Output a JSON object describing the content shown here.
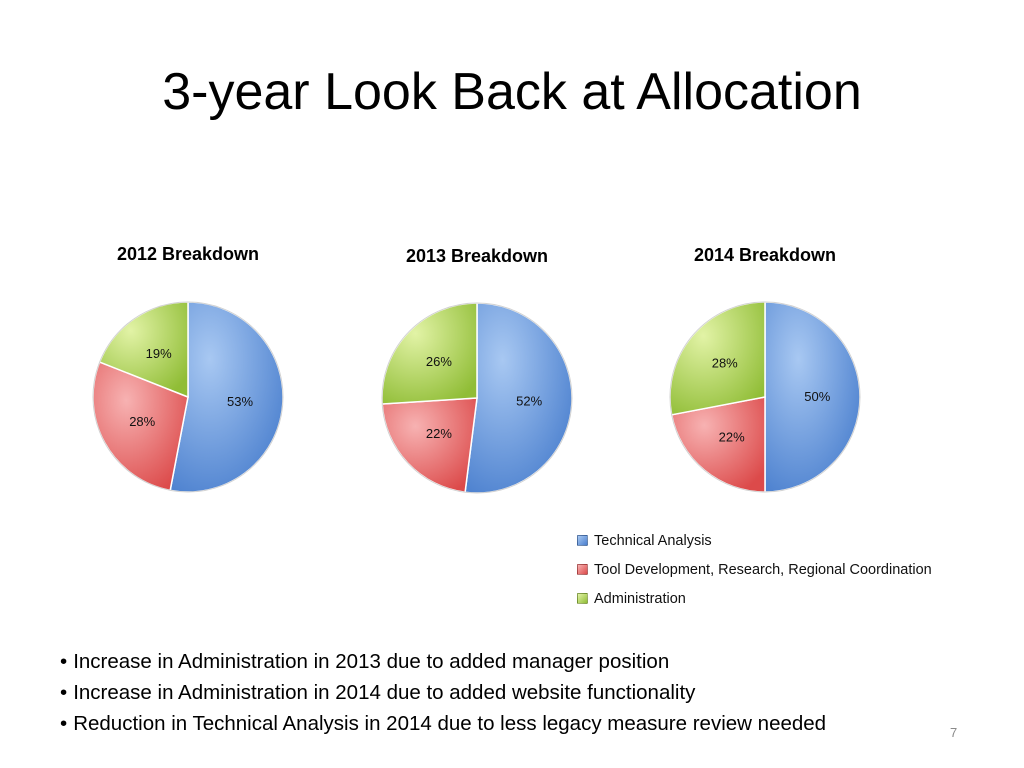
{
  "slide": {
    "title": "3-year Look Back at Allocation",
    "page_number": "7",
    "bullets": [
      "Increase in Administration in 2013 due to added manager position",
      "Increase in Administration in 2014 due to added website functionality",
      "Reduction in Technical Analysis in 2014 due to less legacy measure review needed"
    ]
  },
  "chart_data": [
    {
      "type": "pie",
      "title": "2012 Breakdown",
      "categories": [
        "Technical Analysis",
        "Tool Development, Research, Regional Coordination",
        "Administration"
      ],
      "values": [
        53,
        28,
        19
      ],
      "labels": [
        "53%",
        "28%",
        "19%"
      ]
    },
    {
      "type": "pie",
      "title": "2013 Breakdown",
      "categories": [
        "Technical Analysis",
        "Tool Development, Research, Regional Coordination",
        "Administration"
      ],
      "values": [
        52,
        22,
        26
      ],
      "labels": [
        "52%",
        "22%",
        "26%"
      ]
    },
    {
      "type": "pie",
      "title": "2014 Breakdown",
      "categories": [
        "Technical Analysis",
        "Tool Development, Research, Regional Coordination",
        "Administration"
      ],
      "values": [
        50,
        22,
        28
      ],
      "labels": [
        "50%",
        "22%",
        "28%"
      ]
    }
  ],
  "legend": {
    "placement": "bottom-right",
    "items": [
      {
        "label": "Technical Analysis",
        "color": "#4f81bd"
      },
      {
        "label": "Tool Development, Research, Regional Coordination",
        "color": "#e85a5a"
      },
      {
        "label": "Administration",
        "color": "#9bbb3a"
      }
    ]
  },
  "colors": {
    "series": [
      {
        "light": "#a8c8f2",
        "dark": "#4a7fce"
      },
      {
        "light": "#f7b2b2",
        "dark": "#dc4a4a"
      },
      {
        "light": "#e2f3a6",
        "dark": "#90bd36"
      }
    ]
  }
}
